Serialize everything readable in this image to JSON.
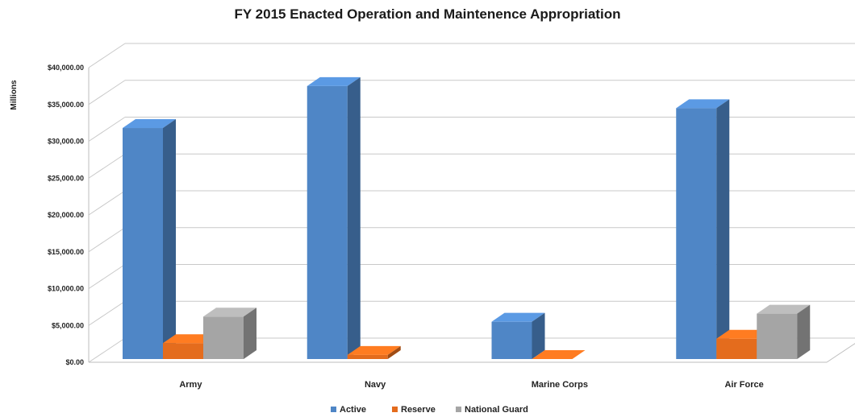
{
  "chart_data": {
    "type": "bar",
    "title": "FY 2015 Enacted Operation and Maintenence Appropriation",
    "xlabel": "",
    "ylabel": "Millions",
    "categories": [
      "Army",
      "Navy",
      "Marine Corps",
      "Air Force"
    ],
    "ylim": [
      0,
      40000
    ],
    "yticks": [
      "$0.00",
      "$5,000.00",
      "$10,000.00",
      "$15,000.00",
      "$20,000.00",
      "$25,000.00",
      "$30,000.00",
      "$35,000.00",
      "$40,000.00"
    ],
    "grid": true,
    "legend_position": "bottom",
    "series": [
      {
        "name": "Active",
        "color": "#4f86c6",
        "values": [
          31800,
          37500,
          5500,
          34500
        ]
      },
      {
        "name": "Reserve",
        "color": "#e46c1d",
        "values": [
          2600,
          1000,
          300,
          3200
        ]
      },
      {
        "name": "National Guard",
        "color": "#a5a5a5",
        "values": [
          6200,
          0,
          0,
          6600
        ]
      }
    ]
  }
}
